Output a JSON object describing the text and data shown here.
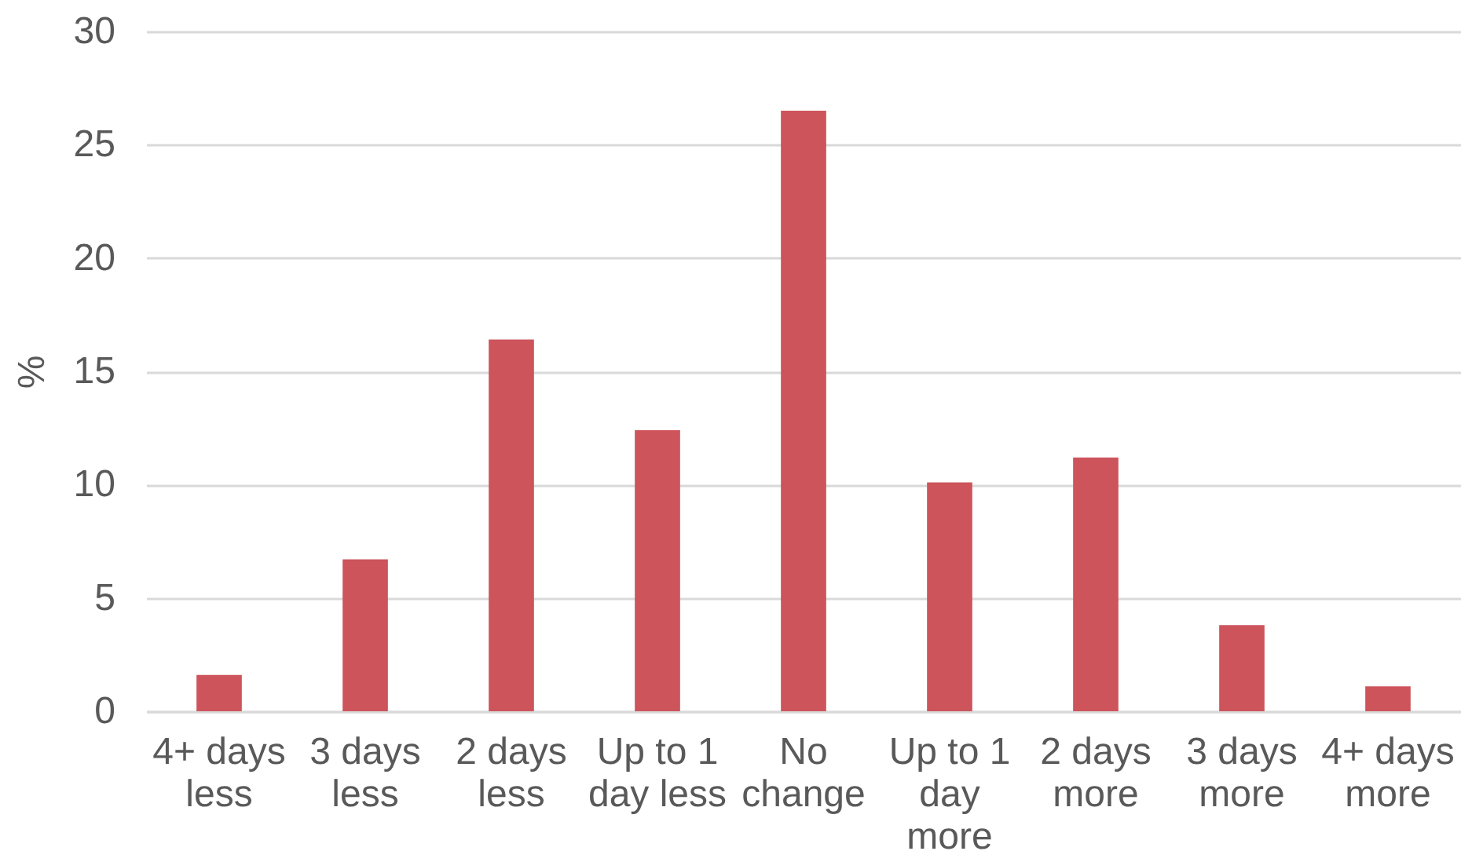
{
  "chart_data": {
    "type": "bar",
    "ylabel": "%",
    "categories": [
      "4+ days less",
      "3 days less",
      "2 days less",
      "Up to 1 day less",
      "No change",
      "Up to 1 day more",
      "2 days more",
      "3 days more",
      "4+ days more"
    ],
    "values": [
      1.6,
      6.7,
      16.4,
      12.4,
      26.5,
      10.1,
      11.2,
      3.8,
      1.1
    ],
    "color": "#cd545b",
    "ylim": [
      0,
      30
    ],
    "yticks": [
      0,
      5,
      10,
      15,
      20,
      25,
      30
    ],
    "grid": "y"
  }
}
